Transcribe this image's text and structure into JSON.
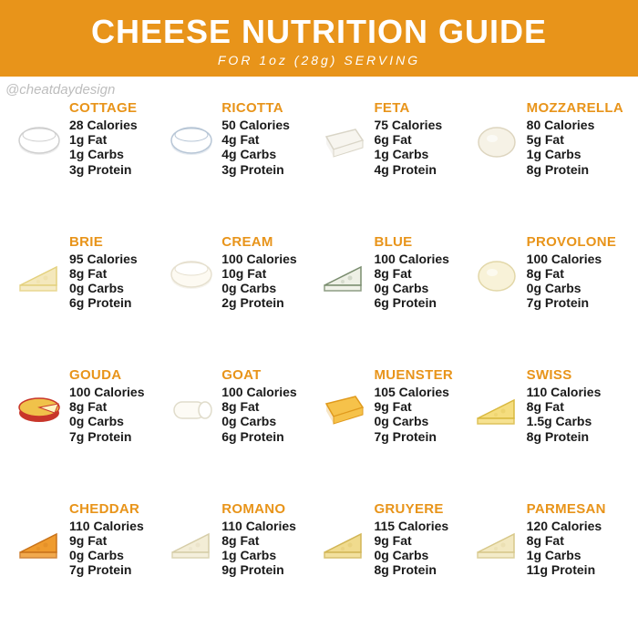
{
  "header": {
    "title": "CHEESE NUTRITION GUIDE",
    "subtitle": "FOR 1oz (28g) SERVING",
    "bg_color": "#e8941a",
    "text_color": "#ffffff"
  },
  "watermark": "@cheatdaydesign",
  "accent_color": "#e8941a",
  "text_color": "#1a1a1a",
  "cheeses": [
    {
      "name": "COTTAGE",
      "calories": "28 Calories",
      "fat": "1g Fat",
      "carbs": "1g Carbs",
      "protein": "3g Protein",
      "swatch_fill": "#ffffff",
      "swatch_stroke": "#cfcfcf",
      "shape": "bowl"
    },
    {
      "name": "RICOTTA",
      "calories": "50 Calories",
      "fat": "4g Fat",
      "carbs": "4g Carbs",
      "protein": "3g Protein",
      "swatch_fill": "#ffffff",
      "swatch_stroke": "#b7c6d6",
      "shape": "bowl"
    },
    {
      "name": "FETA",
      "calories": "75 Calories",
      "fat": "6g Fat",
      "carbs": "1g Carbs",
      "protein": "4g Protein",
      "swatch_fill": "#f7f5ef",
      "swatch_stroke": "#d9d5c7",
      "shape": "block"
    },
    {
      "name": "MOZZARELLA",
      "calories": "80 Calories",
      "fat": "5g Fat",
      "carbs": "1g Carbs",
      "protein": "8g Protein",
      "swatch_fill": "#f6f2e6",
      "swatch_stroke": "#ddd5bf",
      "shape": "round"
    },
    {
      "name": "BRIE",
      "calories": "95 Calories",
      "fat": "8g Fat",
      "carbs": "0g Carbs",
      "protein": "6g Protein",
      "swatch_fill": "#f4e8bc",
      "swatch_stroke": "#e4d17f",
      "shape": "wedge"
    },
    {
      "name": "CREAM",
      "calories": "100 Calories",
      "fat": "10g Fat",
      "carbs": "0g Carbs",
      "protein": "2g Protein",
      "swatch_fill": "#fdfaf2",
      "swatch_stroke": "#e6e0cf",
      "shape": "bowl"
    },
    {
      "name": "BLUE",
      "calories": "100 Calories",
      "fat": "8g Fat",
      "carbs": "0g Carbs",
      "protein": "6g Protein",
      "swatch_fill": "#eef0e6",
      "swatch_stroke": "#7a8d6f",
      "shape": "wedge"
    },
    {
      "name": "PROVOLONE",
      "calories": "100 Calories",
      "fat": "8g Fat",
      "carbs": "0g Carbs",
      "protein": "7g Protein",
      "swatch_fill": "#f8f2d8",
      "swatch_stroke": "#e2d7a8",
      "shape": "round"
    },
    {
      "name": "GOUDA",
      "calories": "100 Calories",
      "fat": "8g Fat",
      "carbs": "0g Carbs",
      "protein": "7g Protein",
      "swatch_fill": "#f0c24a",
      "swatch_stroke": "#c8362a",
      "shape": "wheel"
    },
    {
      "name": "GOAT",
      "calories": "100 Calories",
      "fat": "8g Fat",
      "carbs": "0g Carbs",
      "protein": "6g Protein",
      "swatch_fill": "#fdfbf5",
      "swatch_stroke": "#e0dccb",
      "shape": "log"
    },
    {
      "name": "MUENSTER",
      "calories": "105 Calories",
      "fat": "9g Fat",
      "carbs": "0g Carbs",
      "protein": "7g Protein",
      "swatch_fill": "#f6c24a",
      "swatch_stroke": "#e09a1d",
      "shape": "block"
    },
    {
      "name": "SWISS",
      "calories": "110 Calories",
      "fat": "8g Fat",
      "carbs": "1.5g Carbs",
      "protein": "8g Protein",
      "swatch_fill": "#f5dd7e",
      "swatch_stroke": "#d9b93f",
      "shape": "wedge"
    },
    {
      "name": "CHEDDAR",
      "calories": "110 Calories",
      "fat": "9g Fat",
      "carbs": "0g Carbs",
      "protein": "7g Protein",
      "swatch_fill": "#ef9b2e",
      "swatch_stroke": "#c9731a",
      "shape": "wedge"
    },
    {
      "name": "ROMANO",
      "calories": "110 Calories",
      "fat": "8g Fat",
      "carbs": "1g Carbs",
      "protein": "9g Protein",
      "swatch_fill": "#f3edd6",
      "swatch_stroke": "#d6cda8",
      "shape": "wedge"
    },
    {
      "name": "GRUYERE",
      "calories": "115 Calories",
      "fat": "9g Fat",
      "carbs": "0g Carbs",
      "protein": "8g Protein",
      "swatch_fill": "#f0db8e",
      "swatch_stroke": "#d2b657",
      "shape": "wedge"
    },
    {
      "name": "PARMESAN",
      "calories": "120 Calories",
      "fat": "8g Fat",
      "carbs": "1g Carbs",
      "protein": "11g Protein",
      "swatch_fill": "#f2e8c0",
      "swatch_stroke": "#d7c88a",
      "shape": "wedge"
    }
  ]
}
